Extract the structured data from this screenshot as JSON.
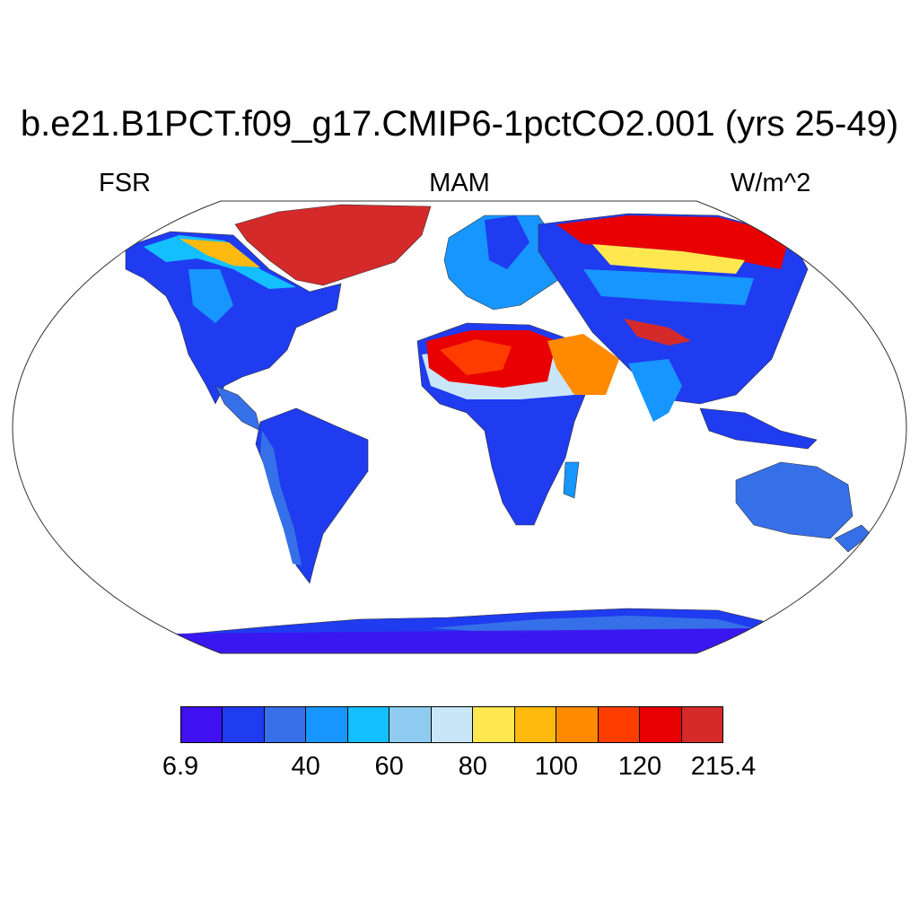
{
  "title": "b.e21.B1PCT.f09_g17.CMIP6-1pctCO2.001 (yrs 25-49)",
  "left_label": "FSR",
  "center_label": "MAM",
  "right_label": "W/m^2",
  "colorbar": {
    "colors": [
      "#3f10f0",
      "#1f3cf0",
      "#3670e8",
      "#1896ff",
      "#14bfff",
      "#8fcbf0",
      "#c8e6f8",
      "#ffe84f",
      "#ffb90f",
      "#ff8a00",
      "#ff3c00",
      "#e90000",
      "#d52a2a"
    ],
    "tick_labels": [
      {
        "text": "6.9",
        "bin_edge": 0
      },
      {
        "text": "40",
        "bin_edge": 3
      },
      {
        "text": "60",
        "bin_edge": 5
      },
      {
        "text": "80",
        "bin_edge": 7
      },
      {
        "text": "100",
        "bin_edge": 9
      },
      {
        "text": "120",
        "bin_edge": 11
      },
      {
        "text": "215.4",
        "bin_edge": 13
      }
    ]
  }
}
